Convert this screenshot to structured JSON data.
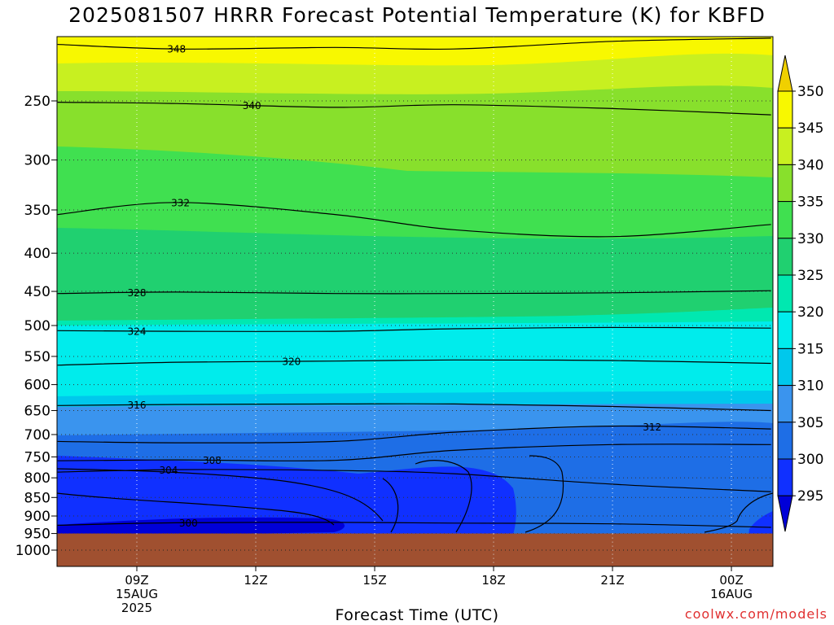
{
  "title": "2025081507 HRRR Forecast Potential Temperature (K) for KBFD",
  "credit": "coolwx.com/models",
  "chart_data": {
    "type": "contour",
    "title": "2025081507 HRRR Forecast Potential Temperature (K) for KBFD",
    "xlabel": "Forecast Time (UTC)",
    "ylabel": "",
    "y_scale": "log",
    "y_inverted": true,
    "ylim": [
      1000,
      200
    ],
    "grid": true,
    "x_ticks": [
      {
        "hour": 9,
        "lines": [
          "09Z",
          "15AUG",
          "2025"
        ]
      },
      {
        "hour": 12,
        "lines": [
          "12Z"
        ]
      },
      {
        "hour": 15,
        "lines": [
          "15Z"
        ]
      },
      {
        "hour": 18,
        "lines": [
          "18Z"
        ]
      },
      {
        "hour": 21,
        "lines": [
          "21Z"
        ]
      },
      {
        "hour": 24,
        "lines": [
          "00Z",
          "16AUG"
        ]
      }
    ],
    "x_range_hours": [
      7,
      25
    ],
    "y_ticks": [
      250,
      300,
      350,
      400,
      450,
      500,
      550,
      600,
      650,
      700,
      750,
      800,
      850,
      900,
      950,
      1000
    ],
    "surface_pressure_hPa": 950,
    "colorbar": {
      "levels": [
        295,
        300,
        305,
        310,
        315,
        320,
        325,
        330,
        335,
        340,
        345,
        350
      ],
      "colors": [
        "#0000d8",
        "#1030ff",
        "#1e6ee6",
        "#3a94ee",
        "#00c8ec",
        "#00ecec",
        "#00e8b0",
        "#20d070",
        "#40e050",
        "#88e02c",
        "#c8f020",
        "#f8f800"
      ],
      "extend": "both"
    },
    "isotherms": [
      {
        "theta": 300,
        "p": [
          926,
          919,
          918,
          920,
          922,
          932
        ],
        "label_at_hour": 10.3
      },
      {
        "theta": 304,
        "p": [
          786,
          780,
          782,
          790,
          816,
          835
        ],
        "label_at_hour": 9.8
      },
      {
        "theta": 308,
        "p": [
          759,
          757,
          758,
          735,
          722,
          722
        ],
        "label_at_hour": 10.9
      },
      {
        "theta": 312,
        "p": [
          715,
          718,
          715,
          695,
          682,
          688
        ],
        "label_at_hour": 22.0
      },
      {
        "theta": 316,
        "p": [
          640,
          638,
          637,
          637,
          642,
          650
        ],
        "label_at_hour": 9.0
      },
      {
        "theta": 320,
        "p": [
          565,
          560,
          558,
          556,
          557,
          562
        ],
        "label_at_hour": 12.9
      },
      {
        "theta": 324,
        "p": [
          508,
          509,
          509,
          505,
          503,
          504
        ],
        "label_at_hour": 9.0
      },
      {
        "theta": 328,
        "p": [
          453,
          451,
          453,
          453,
          452,
          449
        ],
        "label_at_hour": 9.0
      },
      {
        "theta": 332,
        "p": [
          355,
          342,
          355,
          372,
          380,
          366
        ],
        "label_at_hour": 10.1
      },
      {
        "theta": 340,
        "p": [
          251,
          252,
          255,
          253,
          256,
          261
        ],
        "label_at_hour": 11.9
      },
      {
        "theta": 348,
        "p": [
          210,
          213,
          212,
          213,
          208,
          206
        ],
        "label_at_hour": 10.0
      }
    ],
    "isotherm_hours": [
      7,
      10,
      14,
      17,
      21,
      25
    ]
  }
}
